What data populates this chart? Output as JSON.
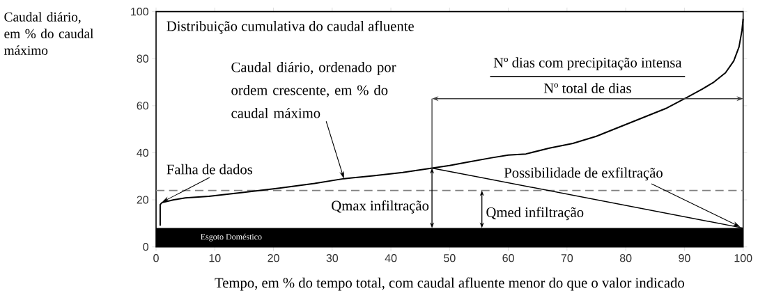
{
  "chart_data": {
    "type": "line",
    "title": "Distribuição cumulativa do caudal afluente",
    "xlabel": "Tempo, em % do tempo total, com caudal afluente menor do que o valor indicado",
    "ylabel": "Caudal diário, em % do caudal máximo",
    "xlim": [
      0,
      100
    ],
    "ylim": [
      0,
      100
    ],
    "xticks": [
      0,
      10,
      20,
      30,
      40,
      50,
      60,
      70,
      80,
      90,
      100
    ],
    "yticks": [
      0,
      20,
      40,
      60,
      80,
      100
    ],
    "grid": false,
    "series": [
      {
        "color": "#000000",
        "x": [
          0.7,
          0.7,
          1,
          3,
          5,
          9,
          15,
          21,
          27,
          32,
          37,
          42,
          47,
          50,
          53,
          57,
          60,
          63,
          67,
          71,
          75,
          79,
          83,
          87,
          90.5,
          93,
          95,
          97,
          98.4,
          99.3,
          99.8,
          100
        ],
        "values": [
          9,
          18,
          18.8,
          20,
          20.8,
          21.5,
          23.2,
          25,
          27,
          29,
          30.2,
          31.6,
          33.5,
          34.6,
          36,
          37.8,
          39,
          39.5,
          42,
          44,
          47,
          51,
          55,
          59,
          63.6,
          67,
          70,
          74,
          79,
          85,
          92,
          97
        ]
      },
      {
        "color": "#000000",
        "x": [
          47,
          100
        ],
        "values": [
          33.5,
          8
        ]
      }
    ],
    "bands": [
      {
        "axis": "y",
        "from": 0,
        "to": 8,
        "label": "Esgoto Doméstico",
        "color": "#000000"
      }
    ],
    "ref_lines": [
      {
        "axis": "y",
        "value": 24,
        "color": "#808080",
        "line_style": "dashed"
      }
    ],
    "annotations": [
      {
        "text": "Caudal diário, ordenado por ordem crescente, em % do caudal máximo",
        "x": 32,
        "y": 29
      },
      {
        "text": "Falha de dados",
        "x": 1,
        "y": 19
      },
      "Nº dias com precipitação intensa",
      "Nº total de dias",
      {
        "text": "Possibilidade de exfiltração",
        "x": 99.5,
        "y": 8.5
      },
      "Qmax infiltração",
      "Qmed infiltração"
    ]
  }
}
